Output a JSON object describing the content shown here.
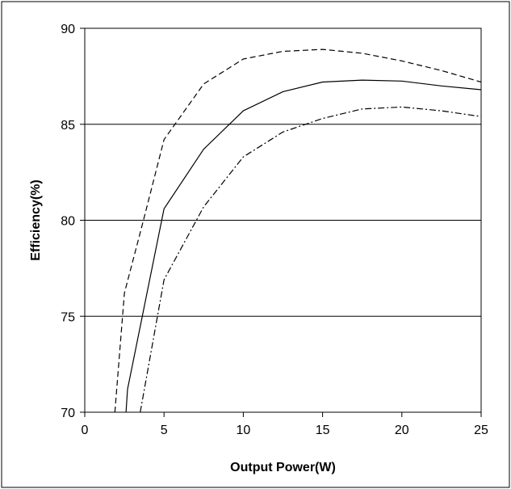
{
  "chart_data": {
    "type": "line",
    "title": "",
    "xlabel": "Output Power(W)",
    "ylabel": "Efficiency(%)",
    "xlim": [
      0,
      25
    ],
    "ylim": [
      70,
      90
    ],
    "x_ticks": [
      "0",
      "5",
      "10",
      "15",
      "20",
      "25"
    ],
    "y_ticks": [
      "70",
      "75",
      "80",
      "85",
      "90"
    ],
    "grid": "horizontal",
    "legend": "none",
    "series": [
      {
        "line_style": "dashed",
        "color": "#000000",
        "points": [
          [
            1.9,
            70.0
          ],
          [
            2.5,
            76.2
          ],
          [
            3.7,
            80.0
          ],
          [
            5.0,
            84.2
          ],
          [
            7.5,
            87.1
          ],
          [
            10.0,
            88.4
          ],
          [
            12.5,
            88.8
          ],
          [
            15.0,
            88.9
          ],
          [
            17.5,
            88.7
          ],
          [
            20.0,
            88.3
          ],
          [
            22.5,
            87.8
          ],
          [
            25.0,
            87.2
          ]
        ]
      },
      {
        "line_style": "solid",
        "color": "#000000",
        "points": [
          [
            2.6,
            70.0
          ],
          [
            2.7,
            71.2
          ],
          [
            5.0,
            80.6
          ],
          [
            7.5,
            83.7
          ],
          [
            10.0,
            85.7
          ],
          [
            12.5,
            86.7
          ],
          [
            15.0,
            87.2
          ],
          [
            17.5,
            87.3
          ],
          [
            20.0,
            87.25
          ],
          [
            22.5,
            87.0
          ],
          [
            25.0,
            86.8
          ]
        ]
      },
      {
        "line_style": "dash-dot",
        "color": "#000000",
        "points": [
          [
            3.5,
            70.0
          ],
          [
            5.0,
            76.9
          ],
          [
            7.5,
            80.7
          ],
          [
            10.0,
            83.3
          ],
          [
            12.5,
            84.6
          ],
          [
            15.0,
            85.3
          ],
          [
            17.5,
            85.8
          ],
          [
            20.0,
            85.9
          ],
          [
            22.5,
            85.7
          ],
          [
            25.0,
            85.4
          ]
        ]
      }
    ]
  }
}
